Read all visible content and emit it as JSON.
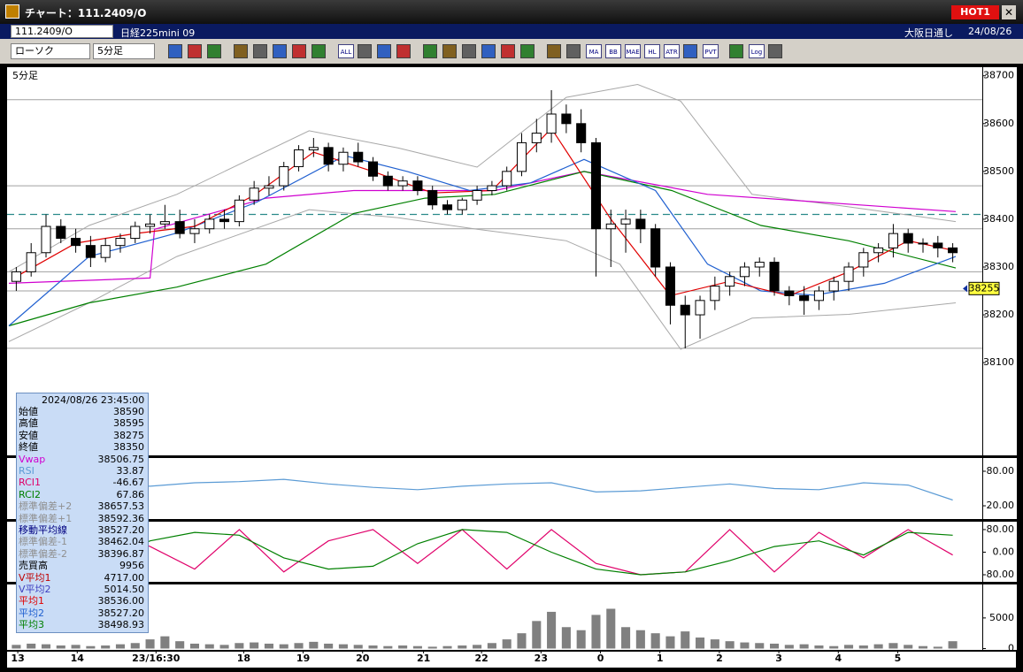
{
  "window": {
    "title": "チャート：111.2409/O",
    "hot": "HOT1"
  },
  "symbol_bar": {
    "code": "111.2409/O",
    "name": "日経225mini 09",
    "market": "大阪日通し",
    "date": "24/08/26"
  },
  "toolbar": {
    "chart_style": "ローソク",
    "interval": "5分足",
    "icons": [
      "ALL",
      "MA",
      "BB",
      "MAE",
      "HL",
      "ATR",
      "PVT",
      "Log"
    ]
  },
  "info_panel": {
    "timestamp": "2024/08/26  23:45:00",
    "rows": [
      {
        "label": "始値",
        "value": "38590",
        "color": "#000000"
      },
      {
        "label": "高値",
        "value": "38595",
        "color": "#000000"
      },
      {
        "label": "安値",
        "value": "38275",
        "color": "#000000"
      },
      {
        "label": "終値",
        "value": "38350",
        "color": "#000000"
      },
      {
        "label": "Vwap",
        "value": "38506.75",
        "color": "#d000d0"
      },
      {
        "label": "RSI",
        "value": "33.87",
        "color": "#5b9bd5"
      },
      {
        "label": "RCI1",
        "value": "-46.67",
        "color": "#e0006a"
      },
      {
        "label": "RCI2",
        "value": "67.86",
        "color": "#008000"
      },
      {
        "label": "標準偏差+2",
        "value": "38657.53",
        "color": "#909090"
      },
      {
        "label": "標準偏差+1",
        "value": "38592.36",
        "color": "#909090"
      },
      {
        "label": "移動平均線",
        "value": "38527.20",
        "color": "#000080"
      },
      {
        "label": "標準偏差-1",
        "value": "38462.04",
        "color": "#909090"
      },
      {
        "label": "標準偏差-2",
        "value": "38396.87",
        "color": "#909090"
      },
      {
        "label": "売買高",
        "value": "9956",
        "color": "#000000"
      },
      {
        "label": "V平均1",
        "value": "4717.00",
        "color": "#c00000"
      },
      {
        "label": "V平均2",
        "value": "5014.50",
        "color": "#4040c0"
      },
      {
        "label": "平均1",
        "value": "38536.00",
        "color": "#e00000"
      },
      {
        "label": "平均2",
        "value": "38527.20",
        "color": "#2060d0"
      },
      {
        "label": "平均3",
        "value": "38498.93",
        "color": "#008000"
      }
    ]
  },
  "chart_data": [
    {
      "type": "candlestick",
      "title": "5分足",
      "xlim": [
        -0.5,
        63.5
      ],
      "xticks": [
        {
          "value": 0.1,
          "label": "13"
        },
        {
          "value": 4.1,
          "label": "14"
        },
        {
          "value": 9.4,
          "label": "23/16:30"
        },
        {
          "value": 15.3,
          "label": "18"
        },
        {
          "value": 19.3,
          "label": "19"
        },
        {
          "value": 23.3,
          "label": "20"
        },
        {
          "value": 27.4,
          "label": "21"
        },
        {
          "value": 31.3,
          "label": "22"
        },
        {
          "value": 35.3,
          "label": "23"
        },
        {
          "value": 39.3,
          "label": "0"
        },
        {
          "value": 43.3,
          "label": "1"
        },
        {
          "value": 47.3,
          "label": "2"
        },
        {
          "value": 51.3,
          "label": "3"
        },
        {
          "value": 55.3,
          "label": "4"
        },
        {
          "value": 59.3,
          "label": "5"
        }
      ],
      "ylim": [
        37906,
        38718
      ],
      "yticks": [
        38100,
        38200,
        38300,
        38400,
        38500,
        38600,
        38700
      ],
      "up_color": "#ffffff",
      "down_color": "#000000",
      "open": [
        38270,
        38290,
        38330,
        38385,
        38360,
        38345,
        38320,
        38345,
        38360,
        38385,
        38390,
        38395,
        38370,
        38380,
        38400,
        38395,
        38440,
        38465,
        38470,
        38510,
        38545,
        38550,
        38515,
        38540,
        38520,
        38490,
        38470,
        38480,
        38460,
        38430,
        38420,
        38440,
        38460,
        38470,
        38500,
        38560,
        38580,
        38620,
        38600,
        38560,
        38380,
        38390,
        38400,
        38380,
        38300,
        38220,
        38200,
        38230,
        38260,
        38280,
        38300,
        38310,
        38250,
        38240,
        38230,
        38250,
        38270,
        38300,
        38330,
        38340,
        38370,
        38350,
        38350,
        38340
      ],
      "high": [
        38300,
        38350,
        38410,
        38400,
        38380,
        38365,
        38360,
        38370,
        38395,
        38410,
        38430,
        38420,
        38400,
        38410,
        38420,
        38450,
        38480,
        38490,
        38520,
        38555,
        38570,
        38560,
        38550,
        38560,
        38530,
        38500,
        38490,
        38490,
        38470,
        38440,
        38445,
        38470,
        38480,
        38510,
        38580,
        38610,
        38670,
        38640,
        38630,
        38570,
        38420,
        38420,
        38420,
        38390,
        38310,
        38240,
        38240,
        38280,
        38290,
        38310,
        38320,
        38320,
        38260,
        38260,
        38260,
        38280,
        38310,
        38340,
        38350,
        38390,
        38380,
        38360,
        38365,
        38350
      ],
      "low": [
        38250,
        38280,
        38320,
        38350,
        38330,
        38300,
        38310,
        38330,
        38350,
        38370,
        38380,
        38360,
        38350,
        38370,
        38380,
        38385,
        38430,
        38450,
        38460,
        38500,
        38530,
        38500,
        38500,
        38510,
        38480,
        38460,
        38460,
        38450,
        38420,
        38410,
        38410,
        38430,
        38450,
        38460,
        38490,
        38540,
        38560,
        38580,
        38540,
        38280,
        38300,
        38330,
        38350,
        38280,
        38180,
        38130,
        38150,
        38210,
        38240,
        38260,
        38280,
        38240,
        38220,
        38200,
        38210,
        38230,
        38250,
        38280,
        38310,
        38320,
        38330,
        38330,
        38320,
        38310
      ],
      "close": [
        38290,
        38330,
        38385,
        38360,
        38345,
        38320,
        38345,
        38360,
        38385,
        38390,
        38395,
        38370,
        38380,
        38400,
        38395,
        38440,
        38465,
        38470,
        38510,
        38545,
        38550,
        38515,
        38540,
        38520,
        38490,
        38470,
        38480,
        38460,
        38430,
        38420,
        38440,
        38460,
        38470,
        38500,
        38560,
        38580,
        38620,
        38600,
        38560,
        38380,
        38390,
        38400,
        38380,
        38300,
        38220,
        38200,
        38230,
        38260,
        38280,
        38300,
        38310,
        38250,
        38240,
        38230,
        38250,
        38270,
        38300,
        38330,
        38340,
        38370,
        38350,
        38350,
        38340,
        38330
      ],
      "levels": [
        38650,
        38470,
        38380,
        38290,
        38250,
        38130
      ],
      "level_color": "#a0a0a0",
      "reference_line": 38410,
      "reference_color": "#2a8a8a",
      "last_price": {
        "value": 38255,
        "label": "38255"
      },
      "lines": [
        {
          "color": "#a8a8a8",
          "x": [
            -0.5,
            4.9,
            10.8,
            19.7,
            25.7,
            31.0,
            37.0,
            41.8,
            44.7,
            49.5,
            55.5,
            63.2
          ],
          "values": [
            38290,
            38387,
            38452,
            38585,
            38549,
            38509,
            38655,
            38682,
            38647,
            38452,
            38428,
            38395
          ]
        },
        {
          "color": "#a8a8a8",
          "x": [
            -0.5,
            4.9,
            10.8,
            19.7,
            25.7,
            31.0,
            37.0,
            40.6,
            44.7,
            49.5,
            56,
            63.2
          ],
          "values": [
            38144,
            38225,
            38322,
            38420,
            38403,
            38379,
            38355,
            38306,
            38128,
            38193,
            38201,
            38225
          ]
        },
        {
          "color": "#d000d0",
          "x": [
            -0.5,
            9,
            9.3,
            16.8,
            22.7,
            32.2,
            38.2,
            46.5,
            63.2
          ],
          "values": [
            38266,
            38277,
            38379,
            38444,
            38460,
            38460,
            38500,
            38452,
            38416
          ]
        },
        {
          "color": "#008000",
          "x": [
            -0.5,
            4.9,
            10.8,
            16.8,
            22.7,
            27.5,
            32.2,
            38.2,
            44.1,
            50.1,
            56,
            63.2
          ],
          "values": [
            38177,
            38225,
            38258,
            38306,
            38412,
            38444,
            38452,
            38500,
            38460,
            38387,
            38355,
            38298
          ]
        },
        {
          "color": "#2060d0",
          "x": [
            -0.5,
            4.9,
            10.8,
            16.2,
            22.1,
            26.3,
            30.5,
            34.6,
            38.2,
            43,
            46.5,
            50.1,
            53.7,
            58.4,
            63.2
          ],
          "values": [
            38177,
            38322,
            38371,
            38436,
            38533,
            38500,
            38460,
            38476,
            38525,
            38460,
            38306,
            38250,
            38241,
            38266,
            38322
          ]
        },
        {
          "color": "#e00000",
          "x": [
            0,
            4,
            8,
            12,
            16,
            20,
            24,
            28,
            32,
            36,
            40,
            44,
            48,
            52,
            56,
            60,
            63
          ],
          "values": [
            38280,
            38350,
            38370,
            38385,
            38450,
            38540,
            38500,
            38455,
            38460,
            38590,
            38400,
            38240,
            38270,
            38240,
            38290,
            38355,
            38335
          ]
        }
      ]
    },
    {
      "type": "line",
      "xlim": [
        -0.5,
        63.5
      ],
      "ylim": [
        -3,
        103
      ],
      "yticks": [
        {
          "value": 20,
          "label": "20.00"
        },
        {
          "value": 80,
          "label": "80.00"
        }
      ],
      "x": [
        0,
        3,
        6,
        9,
        12,
        15,
        18,
        21,
        24,
        27,
        30,
        33,
        36,
        39,
        42,
        45,
        48,
        51,
        54,
        57,
        60,
        63
      ],
      "series": [
        {
          "color": "#5b9bd5",
          "values": [
            55,
            52,
            58,
            54,
            60,
            62,
            66,
            58,
            52,
            48,
            54,
            58,
            60,
            44,
            46,
            52,
            58,
            50,
            48,
            60,
            56,
            30
          ]
        }
      ]
    },
    {
      "type": "line",
      "xlim": [
        -0.5,
        63.5
      ],
      "ylim": [
        -105,
        108
      ],
      "yticks": [
        {
          "value": -80,
          "label": "-80.00"
        },
        {
          "value": 0,
          "label": "0.00"
        },
        {
          "value": 80,
          "label": "80.00"
        }
      ],
      "x": [
        0,
        3,
        6,
        9,
        12,
        15,
        18,
        21,
        24,
        27,
        30,
        33,
        36,
        39,
        42,
        45,
        48,
        51,
        54,
        57,
        60,
        63
      ],
      "series": [
        {
          "color": "#e0006a",
          "values": [
            60,
            -40,
            80,
            20,
            -60,
            80,
            -70,
            40,
            80,
            -40,
            80,
            -60,
            80,
            -40,
            -80,
            -70,
            80,
            -70,
            70,
            -20,
            80,
            -10
          ]
        },
        {
          "color": "#008000",
          "values": [
            40,
            20,
            -30,
            40,
            70,
            60,
            -20,
            -60,
            -50,
            30,
            80,
            70,
            0,
            -60,
            -80,
            -70,
            -30,
            20,
            40,
            -10,
            70,
            60
          ]
        }
      ]
    },
    {
      "type": "bar",
      "xlim": [
        -0.5,
        63.5
      ],
      "ylim": [
        -219,
        10470
      ],
      "yticks": [
        0,
        5000
      ],
      "color": "#808080",
      "values": [
        600,
        800,
        700,
        500,
        600,
        400,
        500,
        700,
        900,
        1500,
        2000,
        1200,
        800,
        700,
        600,
        900,
        1000,
        800,
        700,
        900,
        1100,
        800,
        700,
        600,
        500,
        400,
        500,
        400,
        300,
        400,
        500,
        600,
        900,
        1500,
        2500,
        4500,
        6000,
        3500,
        3000,
        5500,
        6500,
        3500,
        3000,
        2500,
        2000,
        2800,
        1800,
        1500,
        1200,
        1000,
        900,
        800,
        600,
        700,
        500,
        400,
        600,
        500,
        700,
        900,
        600,
        400,
        300,
        1200
      ]
    }
  ]
}
